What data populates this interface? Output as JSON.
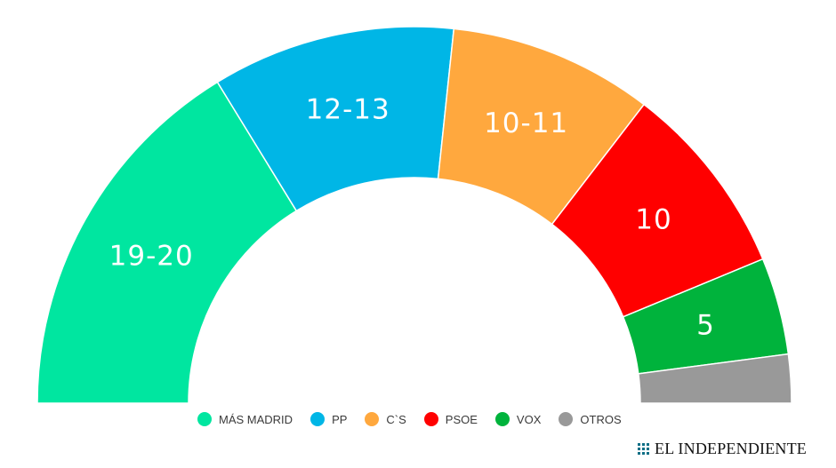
{
  "chart_data": {
    "type": "pie",
    "subtype": "parliament-hemicycle",
    "slices": [
      {
        "name": "MÁS MADRID",
        "label": "19-20",
        "value": 19.5,
        "color": "#00e6a0"
      },
      {
        "name": "PP",
        "label": "12-13",
        "value": 12.5,
        "color": "#00b6e6"
      },
      {
        "name": "C`S",
        "label": "10-11",
        "value": 10.5,
        "color": "#ffa83e"
      },
      {
        "name": "PSOE",
        "label": "10",
        "value": 10,
        "color": "#ff0000"
      },
      {
        "name": "VOX",
        "label": "5",
        "value": 5,
        "color": "#00b33c"
      },
      {
        "name": "OTROS",
        "label": "",
        "value": 2.5,
        "color": "#999999"
      }
    ],
    "legend_position": "bottom"
  },
  "brand": {
    "name": "EL INDEPENDIENTE"
  }
}
